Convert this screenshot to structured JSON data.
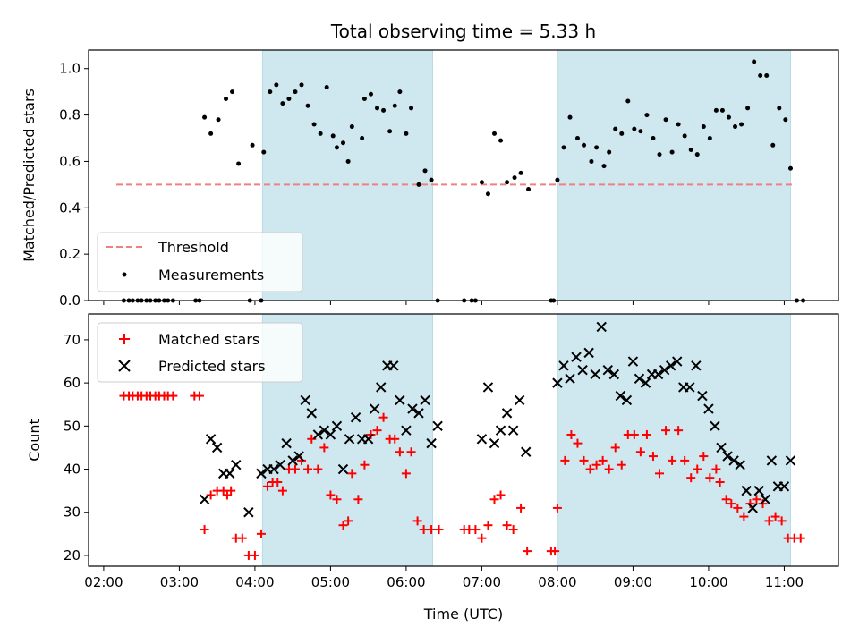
{
  "chart_data": {
    "title": "Total observing time = 5.33 h",
    "xlabel": "Time (UTC)",
    "x_ticks": [
      "02:00",
      "03:00",
      "04:00",
      "05:00",
      "06:00",
      "07:00",
      "08:00",
      "09:00",
      "10:00",
      "11:00"
    ],
    "x_range": [
      "01:48",
      "11:43"
    ],
    "shaded_intervals": [
      [
        "04:06",
        "06:21"
      ],
      [
        "08:00",
        "11:05"
      ]
    ],
    "shade_color": "#cfe8f0",
    "top": {
      "type": "scatter",
      "ylabel": "Matched/Predicted stars",
      "ylim": [
        0,
        1.08
      ],
      "y_ticks": [
        "0.0",
        "0.2",
        "0.4",
        "0.6",
        "0.8",
        "1.0"
      ],
      "threshold": {
        "name": "Threshold",
        "value": 0.5,
        "x_range": [
          "02:10",
          "11:06"
        ],
        "color": "#f08080"
      },
      "measurements_name": "Measurements",
      "legend_loc": "lower left",
      "points": [
        [
          "02:16",
          0
        ],
        [
          "02:20",
          0
        ],
        [
          "02:23",
          0
        ],
        [
          "02:27",
          0
        ],
        [
          "02:30",
          0
        ],
        [
          "02:34",
          0
        ],
        [
          "02:37",
          0
        ],
        [
          "02:41",
          0
        ],
        [
          "02:44",
          0
        ],
        [
          "02:48",
          0
        ],
        [
          "02:51",
          0
        ],
        [
          "02:55",
          0
        ],
        [
          "03:13",
          0
        ],
        [
          "03:16",
          0
        ],
        [
          "03:20",
          0.79
        ],
        [
          "03:25",
          0.72
        ],
        [
          "03:31",
          0.78
        ],
        [
          "03:37",
          0.87
        ],
        [
          "03:42",
          0.9
        ],
        [
          "03:47",
          0.59
        ],
        [
          "03:56",
          0
        ],
        [
          "03:58",
          0.67
        ],
        [
          "04:05",
          0
        ],
        [
          "04:07",
          0.64
        ],
        [
          "04:12",
          0.9
        ],
        [
          "04:17",
          0.93
        ],
        [
          "04:22",
          0.85
        ],
        [
          "04:27",
          0.87
        ],
        [
          "04:32",
          0.9
        ],
        [
          "04:37",
          0.93
        ],
        [
          "04:42",
          0.84
        ],
        [
          "04:47",
          0.76
        ],
        [
          "04:52",
          0.72
        ],
        [
          "04:57",
          0.92
        ],
        [
          "05:02",
          0.71
        ],
        [
          "05:05",
          0.66
        ],
        [
          "05:10",
          0.68
        ],
        [
          "05:14",
          0.6
        ],
        [
          "05:17",
          0.75
        ],
        [
          "05:25",
          0.7
        ],
        [
          "05:27",
          0.87
        ],
        [
          "05:32",
          0.89
        ],
        [
          "05:37",
          0.83
        ],
        [
          "05:42",
          0.82
        ],
        [
          "05:47",
          0.73
        ],
        [
          "05:51",
          0.84
        ],
        [
          "05:55",
          0.9
        ],
        [
          "06:00",
          0.72
        ],
        [
          "06:04",
          0.83
        ],
        [
          "06:10",
          0.5
        ],
        [
          "06:15",
          0.56
        ],
        [
          "06:20",
          0.52
        ],
        [
          "06:25",
          0
        ],
        [
          "06:46",
          0
        ],
        [
          "06:52",
          0
        ],
        [
          "06:55",
          0
        ],
        [
          "07:00",
          0.51
        ],
        [
          "07:05",
          0.46
        ],
        [
          "07:10",
          0.72
        ],
        [
          "07:15",
          0.69
        ],
        [
          "07:20",
          0.51
        ],
        [
          "07:26",
          0.53
        ],
        [
          "07:31",
          0.55
        ],
        [
          "07:37",
          0.48
        ],
        [
          "07:55",
          0
        ],
        [
          "07:57",
          0
        ],
        [
          "08:00",
          0.52
        ],
        [
          "08:05",
          0.66
        ],
        [
          "08:10",
          0.79
        ],
        [
          "08:16",
          0.7
        ],
        [
          "08:21",
          0.67
        ],
        [
          "08:27",
          0.6
        ],
        [
          "08:31",
          0.66
        ],
        [
          "08:37",
          0.58
        ],
        [
          "08:41",
          0.64
        ],
        [
          "08:46",
          0.74
        ],
        [
          "08:51",
          0.72
        ],
        [
          "08:56",
          0.86
        ],
        [
          "09:01",
          0.74
        ],
        [
          "09:06",
          0.73
        ],
        [
          "09:11",
          0.8
        ],
        [
          "09:16",
          0.7
        ],
        [
          "09:21",
          0.63
        ],
        [
          "09:26",
          0.78
        ],
        [
          "09:31",
          0.64
        ],
        [
          "09:36",
          0.76
        ],
        [
          "09:41",
          0.71
        ],
        [
          "09:46",
          0.65
        ],
        [
          "09:51",
          0.63
        ],
        [
          "09:56",
          0.75
        ],
        [
          "10:01",
          0.7
        ],
        [
          "10:06",
          0.82
        ],
        [
          "10:11",
          0.82
        ],
        [
          "10:16",
          0.79
        ],
        [
          "10:21",
          0.75
        ],
        [
          "10:26",
          0.76
        ],
        [
          "10:31",
          0.83
        ],
        [
          "10:36",
          1.03
        ],
        [
          "10:41",
          0.97
        ],
        [
          "10:46",
          0.97
        ],
        [
          "10:51",
          0.67
        ],
        [
          "10:56",
          0.83
        ],
        [
          "11:01",
          0.78
        ],
        [
          "11:05",
          0.57
        ],
        [
          "11:10",
          0
        ],
        [
          "11:15",
          0
        ]
      ]
    },
    "bottom": {
      "type": "scatter",
      "ylabel": "Count",
      "ylim": [
        17.5,
        76
      ],
      "y_ticks": [
        "20",
        "30",
        "40",
        "50",
        "60",
        "70"
      ],
      "legend_loc": "upper left",
      "matched": {
        "name": "Matched stars",
        "color": "#ff0000",
        "points": [
          [
            "02:16",
            57
          ],
          [
            "02:20",
            57
          ],
          [
            "02:23",
            57
          ],
          [
            "02:27",
            57
          ],
          [
            "02:30",
            57
          ],
          [
            "02:34",
            57
          ],
          [
            "02:37",
            57
          ],
          [
            "02:41",
            57
          ],
          [
            "02:44",
            57
          ],
          [
            "02:48",
            57
          ],
          [
            "02:51",
            57
          ],
          [
            "02:55",
            57
          ],
          [
            "03:12",
            57
          ],
          [
            "03:16",
            57
          ],
          [
            "03:20",
            26
          ],
          [
            "03:25",
            34
          ],
          [
            "03:30",
            35
          ],
          [
            "03:35",
            35
          ],
          [
            "03:38",
            34
          ],
          [
            "03:41",
            35
          ],
          [
            "03:45",
            24
          ],
          [
            "03:50",
            24
          ],
          [
            "03:55",
            20
          ],
          [
            "04:00",
            20
          ],
          [
            "04:05",
            25
          ],
          [
            "04:10",
            36
          ],
          [
            "04:14",
            37
          ],
          [
            "04:18",
            37
          ],
          [
            "04:22",
            35
          ],
          [
            "04:27",
            40
          ],
          [
            "04:32",
            40
          ],
          [
            "04:37",
            42
          ],
          [
            "04:42",
            40
          ],
          [
            "04:45",
            47
          ],
          [
            "04:50",
            40
          ],
          [
            "04:55",
            45
          ],
          [
            "05:00",
            34
          ],
          [
            "05:05",
            33
          ],
          [
            "05:10",
            27
          ],
          [
            "05:14",
            28
          ],
          [
            "05:17",
            39
          ],
          [
            "05:22",
            33
          ],
          [
            "05:27",
            41
          ],
          [
            "05:32",
            48
          ],
          [
            "05:37",
            49
          ],
          [
            "05:42",
            52
          ],
          [
            "05:47",
            47
          ],
          [
            "05:51",
            47
          ],
          [
            "05:55",
            44
          ],
          [
            "06:00",
            39
          ],
          [
            "06:04",
            44
          ],
          [
            "06:09",
            28
          ],
          [
            "06:14",
            26
          ],
          [
            "06:20",
            26
          ],
          [
            "06:26",
            26
          ],
          [
            "06:46",
            26
          ],
          [
            "06:50",
            26
          ],
          [
            "06:55",
            26
          ],
          [
            "07:00",
            24
          ],
          [
            "07:05",
            27
          ],
          [
            "07:10",
            33
          ],
          [
            "07:15",
            34
          ],
          [
            "07:20",
            27
          ],
          [
            "07:25",
            26
          ],
          [
            "07:31",
            31
          ],
          [
            "07:36",
            21
          ],
          [
            "07:55",
            21
          ],
          [
            "07:58",
            21
          ],
          [
            "08:00",
            31
          ],
          [
            "08:06",
            42
          ],
          [
            "08:11",
            48
          ],
          [
            "08:16",
            46
          ],
          [
            "08:21",
            42
          ],
          [
            "08:26",
            40
          ],
          [
            "08:31",
            41
          ],
          [
            "08:36",
            42
          ],
          [
            "08:41",
            40
          ],
          [
            "08:46",
            45
          ],
          [
            "08:51",
            41
          ],
          [
            "08:56",
            48
          ],
          [
            "09:01",
            48
          ],
          [
            "09:06",
            44
          ],
          [
            "09:11",
            48
          ],
          [
            "09:16",
            43
          ],
          [
            "09:21",
            39
          ],
          [
            "09:26",
            49
          ],
          [
            "09:31",
            42
          ],
          [
            "09:36",
            49
          ],
          [
            "09:41",
            42
          ],
          [
            "09:46",
            38
          ],
          [
            "09:51",
            40
          ],
          [
            "09:56",
            43
          ],
          [
            "10:01",
            38
          ],
          [
            "10:06",
            40
          ],
          [
            "10:09",
            37
          ],
          [
            "10:14",
            33
          ],
          [
            "10:18",
            32
          ],
          [
            "10:23",
            31
          ],
          [
            "10:28",
            29
          ],
          [
            "10:33",
            32
          ],
          [
            "10:38",
            33
          ],
          [
            "10:43",
            32
          ],
          [
            "10:48",
            28
          ],
          [
            "10:53",
            29
          ],
          [
            "10:58",
            28
          ],
          [
            "11:03",
            24
          ],
          [
            "11:08",
            24
          ],
          [
            "11:13",
            24
          ]
        ]
      },
      "predicted": {
        "name": "Predicted stars",
        "color": "#000000",
        "points": [
          [
            "03:20",
            33
          ],
          [
            "03:25",
            47
          ],
          [
            "03:30",
            45
          ],
          [
            "03:35",
            39
          ],
          [
            "03:40",
            39
          ],
          [
            "03:45",
            41
          ],
          [
            "03:55",
            30
          ],
          [
            "04:05",
            39
          ],
          [
            "04:10",
            40
          ],
          [
            "04:15",
            40
          ],
          [
            "04:20",
            41
          ],
          [
            "04:25",
            46
          ],
          [
            "04:30",
            42
          ],
          [
            "04:35",
            43
          ],
          [
            "04:40",
            56
          ],
          [
            "04:45",
            53
          ],
          [
            "04:50",
            48
          ],
          [
            "04:55",
            49
          ],
          [
            "05:00",
            48
          ],
          [
            "05:05",
            50
          ],
          [
            "05:10",
            40
          ],
          [
            "05:15",
            47
          ],
          [
            "05:20",
            52
          ],
          [
            "05:25",
            47
          ],
          [
            "05:30",
            47
          ],
          [
            "05:35",
            54
          ],
          [
            "05:40",
            59
          ],
          [
            "05:45",
            64
          ],
          [
            "05:50",
            64
          ],
          [
            "05:55",
            56
          ],
          [
            "06:00",
            49
          ],
          [
            "06:05",
            54
          ],
          [
            "06:10",
            53
          ],
          [
            "06:15",
            56
          ],
          [
            "06:20",
            46
          ],
          [
            "06:25",
            50
          ],
          [
            "07:00",
            47
          ],
          [
            "07:05",
            59
          ],
          [
            "07:10",
            46
          ],
          [
            "07:15",
            49
          ],
          [
            "07:20",
            53
          ],
          [
            "07:25",
            49
          ],
          [
            "07:30",
            56
          ],
          [
            "07:35",
            44
          ],
          [
            "08:00",
            60
          ],
          [
            "08:05",
            64
          ],
          [
            "08:10",
            61
          ],
          [
            "08:15",
            66
          ],
          [
            "08:20",
            63
          ],
          [
            "08:25",
            67
          ],
          [
            "08:30",
            62
          ],
          [
            "08:35",
            73
          ],
          [
            "08:40",
            63
          ],
          [
            "08:45",
            62
          ],
          [
            "08:50",
            57
          ],
          [
            "08:55",
            56
          ],
          [
            "09:00",
            65
          ],
          [
            "09:05",
            61
          ],
          [
            "09:10",
            60
          ],
          [
            "09:15",
            62
          ],
          [
            "09:20",
            62
          ],
          [
            "09:25",
            63
          ],
          [
            "09:30",
            64
          ],
          [
            "09:35",
            65
          ],
          [
            "09:40",
            59
          ],
          [
            "09:45",
            59
          ],
          [
            "09:50",
            64
          ],
          [
            "09:55",
            57
          ],
          [
            "10:00",
            54
          ],
          [
            "10:05",
            50
          ],
          [
            "10:10",
            45
          ],
          [
            "10:15",
            43
          ],
          [
            "10:20",
            42
          ],
          [
            "10:25",
            41
          ],
          [
            "10:30",
            35
          ],
          [
            "10:35",
            31
          ],
          [
            "10:40",
            35
          ],
          [
            "10:45",
            33
          ],
          [
            "10:50",
            42
          ],
          [
            "10:55",
            36
          ],
          [
            "11:00",
            36
          ],
          [
            "11:05",
            42
          ]
        ]
      }
    }
  }
}
